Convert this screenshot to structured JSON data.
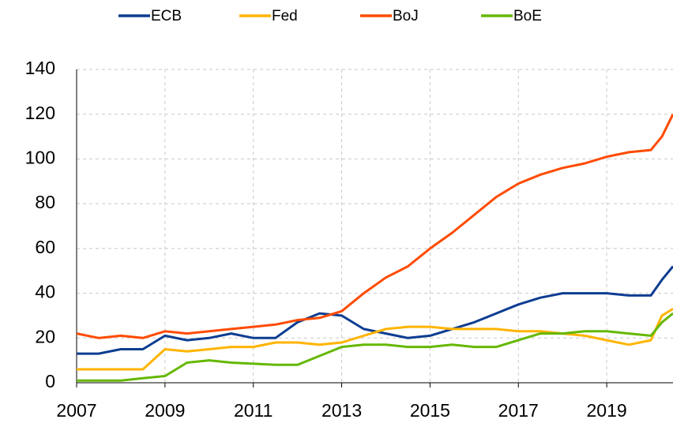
{
  "chart_data": {
    "type": "line",
    "x": [
      2007,
      2007.5,
      2008,
      2008.5,
      2009,
      2009.5,
      2010,
      2010.5,
      2011,
      2011.5,
      2012,
      2012.5,
      2013,
      2013.5,
      2014,
      2014.5,
      2015,
      2015.5,
      2016,
      2016.5,
      2017,
      2017.5,
      2018,
      2018.5,
      2019,
      2019.5,
      2020,
      2020.25,
      2020.5
    ],
    "series": [
      {
        "name": "ECB",
        "color": "#0d3d91",
        "values": [
          13,
          13,
          15,
          15,
          21,
          19,
          20,
          22,
          20,
          20,
          27,
          31,
          30,
          24,
          22,
          20,
          21,
          24,
          27,
          31,
          35,
          38,
          40,
          40,
          40,
          39,
          39,
          46,
          52
        ]
      },
      {
        "name": "Fed",
        "color": "#ffb400",
        "values": [
          6,
          6,
          6,
          6,
          15,
          14,
          15,
          16,
          16,
          18,
          18,
          17,
          18,
          21,
          24,
          25,
          25,
          24,
          24,
          24,
          23,
          23,
          22,
          21,
          19,
          17,
          19,
          30,
          33
        ]
      },
      {
        "name": "BoJ",
        "color": "#ff4b00",
        "values": [
          22,
          20,
          21,
          20,
          23,
          22,
          23,
          24,
          25,
          26,
          28,
          29,
          32,
          40,
          47,
          52,
          60,
          67,
          75,
          83,
          89,
          93,
          96,
          98,
          101,
          103,
          104,
          110,
          120
        ]
      },
      {
        "name": "BoE",
        "color": "#65b800",
        "values": [
          1,
          1,
          1,
          2,
          3,
          9,
          10,
          9,
          8.5,
          8,
          8,
          12,
          16,
          17,
          17,
          16,
          16,
          17,
          16,
          16,
          19,
          22,
          22,
          23,
          23,
          22,
          21,
          27,
          31
        ]
      }
    ],
    "xlim": [
      2007,
      2020.5
    ],
    "xticks": [
      2007,
      2009,
      2011,
      2013,
      2015,
      2017,
      2019
    ],
    "ylim": [
      0,
      140
    ],
    "yticks": [
      0,
      20,
      40,
      60,
      80,
      100,
      120,
      140
    ],
    "grid": true,
    "legend": "top"
  }
}
